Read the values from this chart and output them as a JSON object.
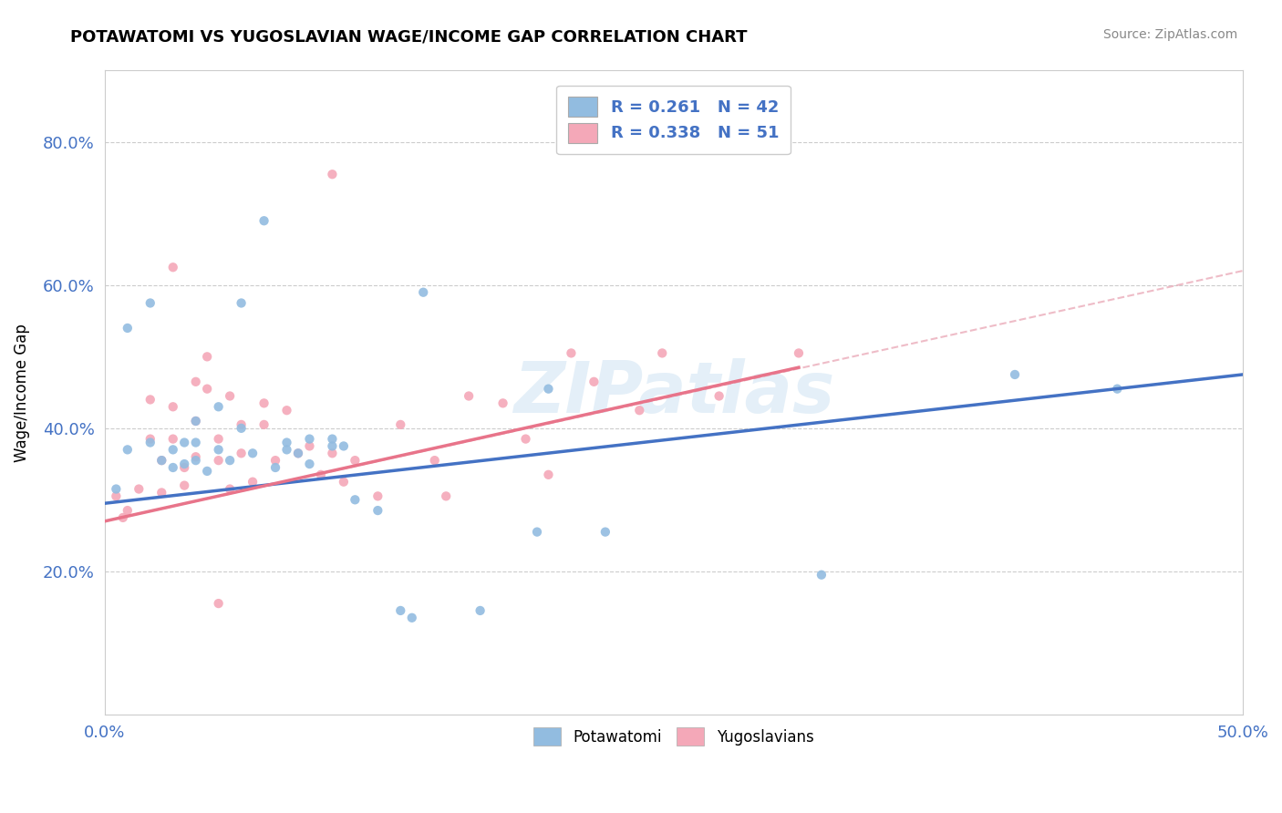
{
  "title": "POTAWATOMI VS YUGOSLAVIAN WAGE/INCOME GAP CORRELATION CHART",
  "source": "Source: ZipAtlas.com",
  "ylabel": "Wage/Income Gap",
  "xlim": [
    0.0,
    0.5
  ],
  "ylim": [
    0.0,
    0.9
  ],
  "ytick_labels": [
    "20.0%",
    "40.0%",
    "60.0%",
    "80.0%"
  ],
  "ytick_positions": [
    0.2,
    0.4,
    0.6,
    0.8
  ],
  "color_blue": "#92bce0",
  "color_pink": "#f4a8b8",
  "line_blue": "#4472c4",
  "line_pink": "#e8748a",
  "line_dashed_color": "#e8a0b0",
  "r_blue": 0.261,
  "n_blue": 42,
  "r_pink": 0.338,
  "n_pink": 51,
  "legend_label_blue": "Potawatomi",
  "legend_label_pink": "Yugoslavians",
  "watermark": "ZIPatlas",
  "potawatomi_x": [
    0.005,
    0.01,
    0.01,
    0.02,
    0.02,
    0.025,
    0.03,
    0.03,
    0.035,
    0.035,
    0.04,
    0.04,
    0.04,
    0.045,
    0.05,
    0.05,
    0.055,
    0.06,
    0.06,
    0.065,
    0.07,
    0.075,
    0.08,
    0.08,
    0.085,
    0.09,
    0.09,
    0.1,
    0.1,
    0.105,
    0.11,
    0.12,
    0.13,
    0.135,
    0.14,
    0.165,
    0.19,
    0.195,
    0.22,
    0.315,
    0.4,
    0.445
  ],
  "potawatomi_y": [
    0.315,
    0.54,
    0.37,
    0.575,
    0.38,
    0.355,
    0.37,
    0.345,
    0.38,
    0.35,
    0.41,
    0.38,
    0.355,
    0.34,
    0.43,
    0.37,
    0.355,
    0.575,
    0.4,
    0.365,
    0.69,
    0.345,
    0.38,
    0.37,
    0.365,
    0.385,
    0.35,
    0.385,
    0.375,
    0.375,
    0.3,
    0.285,
    0.145,
    0.135,
    0.59,
    0.145,
    0.255,
    0.455,
    0.255,
    0.195,
    0.475,
    0.455
  ],
  "yugoslavian_x": [
    0.005,
    0.008,
    0.01,
    0.015,
    0.02,
    0.02,
    0.025,
    0.025,
    0.03,
    0.03,
    0.03,
    0.035,
    0.035,
    0.04,
    0.04,
    0.04,
    0.045,
    0.045,
    0.05,
    0.05,
    0.055,
    0.055,
    0.06,
    0.06,
    0.065,
    0.07,
    0.07,
    0.075,
    0.08,
    0.085,
    0.09,
    0.095,
    0.1,
    0.105,
    0.11,
    0.12,
    0.13,
    0.145,
    0.15,
    0.16,
    0.175,
    0.185,
    0.195,
    0.205,
    0.215,
    0.235,
    0.245,
    0.27,
    0.305,
    0.1,
    0.05
  ],
  "yugoslavian_y": [
    0.305,
    0.275,
    0.285,
    0.315,
    0.44,
    0.385,
    0.355,
    0.31,
    0.625,
    0.43,
    0.385,
    0.345,
    0.32,
    0.465,
    0.41,
    0.36,
    0.5,
    0.455,
    0.385,
    0.355,
    0.315,
    0.445,
    0.405,
    0.365,
    0.325,
    0.435,
    0.405,
    0.355,
    0.425,
    0.365,
    0.375,
    0.335,
    0.365,
    0.325,
    0.355,
    0.305,
    0.405,
    0.355,
    0.305,
    0.445,
    0.435,
    0.385,
    0.335,
    0.505,
    0.465,
    0.425,
    0.505,
    0.445,
    0.505,
    0.755,
    0.155
  ],
  "blue_line_x0": 0.0,
  "blue_line_y0": 0.295,
  "blue_line_x1": 0.5,
  "blue_line_y1": 0.475,
  "pink_line_x0": 0.0,
  "pink_line_y0": 0.27,
  "pink_line_x1": 0.305,
  "pink_line_y1": 0.485,
  "dashed_line_x0": 0.0,
  "dashed_line_y0": 0.27,
  "dashed_line_x1": 0.5,
  "dashed_line_y1": 0.62
}
